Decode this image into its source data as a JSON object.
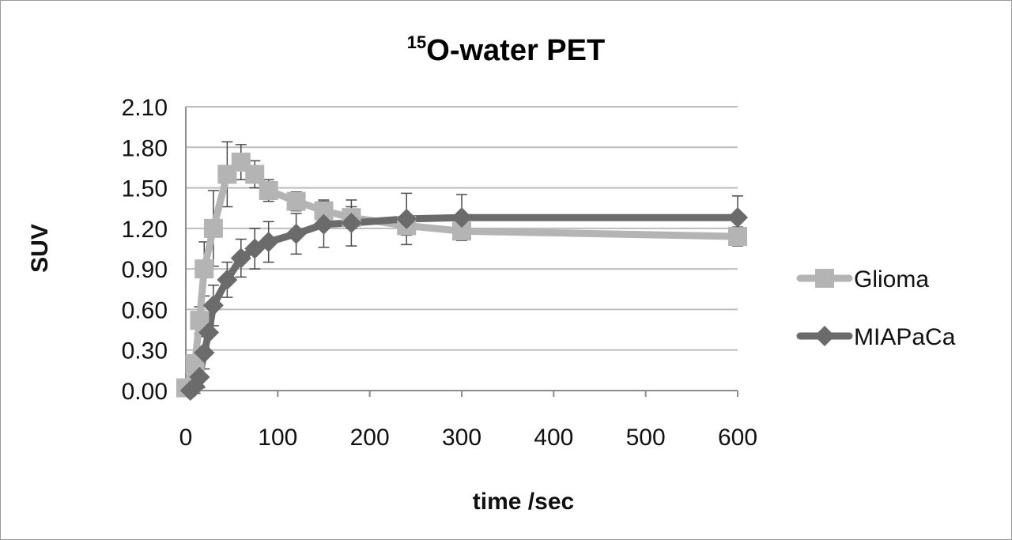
{
  "chart_data": {
    "type": "line",
    "title_superscript": "15",
    "title_main": "O-water PET",
    "xlabel": "time /sec",
    "ylabel": "SUV",
    "xlim": [
      0,
      600
    ],
    "ylim": [
      0,
      2.1
    ],
    "xticks": [
      0,
      100,
      200,
      300,
      400,
      500,
      600
    ],
    "yticks": [
      "0.00",
      "0.30",
      "0.60",
      "0.90",
      "1.20",
      "1.50",
      "1.80",
      "2.10"
    ],
    "grid": true,
    "legend_position": "right",
    "series": [
      {
        "name": "Glioma",
        "marker": "square",
        "color": "#b4b4b4",
        "points": [
          {
            "x": 0,
            "y": 0.02,
            "err": 0.02
          },
          {
            "x": 10,
            "y": 0.2,
            "err": 0.06
          },
          {
            "x": 15,
            "y": 0.52,
            "err": 0.1
          },
          {
            "x": 20,
            "y": 0.9,
            "err": 0.2
          },
          {
            "x": 30,
            "y": 1.2,
            "err": 0.28
          },
          {
            "x": 45,
            "y": 1.6,
            "err": 0.24
          },
          {
            "x": 60,
            "y": 1.69,
            "err": 0.13
          },
          {
            "x": 75,
            "y": 1.6,
            "err": 0.1
          },
          {
            "x": 90,
            "y": 1.48,
            "err": 0.08
          },
          {
            "x": 120,
            "y": 1.4,
            "err": 0.07
          },
          {
            "x": 150,
            "y": 1.33,
            "err": 0.08
          },
          {
            "x": 180,
            "y": 1.28,
            "err": 0.08
          },
          {
            "x": 240,
            "y": 1.22,
            "err": 0.07
          },
          {
            "x": 300,
            "y": 1.18,
            "err": 0.06
          },
          {
            "x": 600,
            "y": 1.14,
            "err": 0.07
          }
        ]
      },
      {
        "name": "MIAPaCa",
        "marker": "diamond",
        "color": "#6b6b6b",
        "points": [
          {
            "x": 5,
            "y": 0.0,
            "err": 0.03
          },
          {
            "x": 10,
            "y": 0.03,
            "err": 0.05
          },
          {
            "x": 15,
            "y": 0.1,
            "err": 0.08
          },
          {
            "x": 20,
            "y": 0.28,
            "err": 0.12
          },
          {
            "x": 25,
            "y": 0.43,
            "err": 0.15
          },
          {
            "x": 30,
            "y": 0.63,
            "err": 0.15
          },
          {
            "x": 45,
            "y": 0.82,
            "err": 0.13
          },
          {
            "x": 60,
            "y": 0.98,
            "err": 0.14
          },
          {
            "x": 75,
            "y": 1.05,
            "err": 0.15
          },
          {
            "x": 90,
            "y": 1.1,
            "err": 0.15
          },
          {
            "x": 120,
            "y": 1.16,
            "err": 0.15
          },
          {
            "x": 150,
            "y": 1.23,
            "err": 0.17
          },
          {
            "x": 180,
            "y": 1.24,
            "err": 0.17
          },
          {
            "x": 240,
            "y": 1.27,
            "err": 0.19
          },
          {
            "x": 300,
            "y": 1.28,
            "err": 0.17
          },
          {
            "x": 600,
            "y": 1.28,
            "err": 0.16
          }
        ]
      }
    ]
  }
}
